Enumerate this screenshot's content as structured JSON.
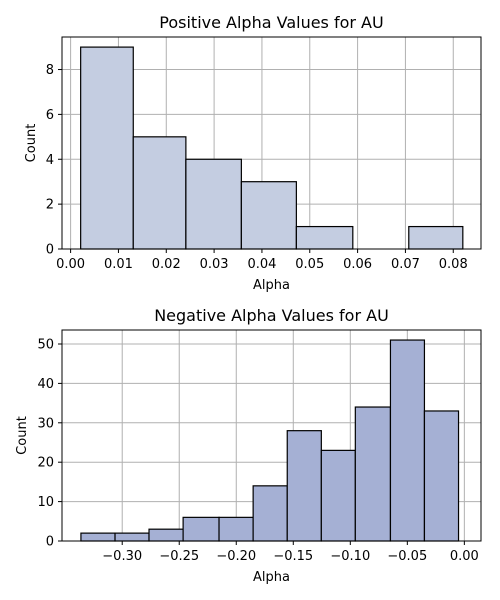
{
  "chart_data": [
    {
      "type": "bar",
      "title": "Positive Alpha Values for AU",
      "xlabel": "Alpha",
      "ylabel": "Count",
      "xlim": [
        -0.0018,
        0.0858
      ],
      "ylim": [
        0,
        9.45
      ],
      "xticks": [
        0.0,
        0.01,
        0.02,
        0.03,
        0.04,
        0.05,
        0.06,
        0.07,
        0.08
      ],
      "xtick_labels": [
        "0.00",
        "0.01",
        "0.02",
        "0.03",
        "0.04",
        "0.05",
        "0.06",
        "0.07",
        "0.08"
      ],
      "yticks": [
        0,
        2,
        4,
        6,
        8
      ],
      "ytick_labels": [
        "0",
        "2",
        "4",
        "6",
        "8"
      ],
      "grid": true,
      "color": "#c4cde1",
      "bins": [
        {
          "x0": 0.0021,
          "x1": 0.0131,
          "count": 9
        },
        {
          "x0": 0.0131,
          "x1": 0.0241,
          "count": 5
        },
        {
          "x0": 0.0241,
          "x1": 0.0357,
          "count": 4
        },
        {
          "x0": 0.0357,
          "x1": 0.0472,
          "count": 3
        },
        {
          "x0": 0.0472,
          "x1": 0.059,
          "count": 1
        },
        {
          "x0": 0.059,
          "x1": 0.0707,
          "count": 0
        },
        {
          "x0": 0.0707,
          "x1": 0.082,
          "count": 1
        }
      ]
    },
    {
      "type": "bar",
      "title": "Negative Alpha Values for AU",
      "xlabel": "Alpha",
      "ylabel": "Count",
      "xlim": [
        -0.3528,
        0.0146
      ],
      "ylim": [
        0,
        53.55
      ],
      "xticks": [
        -0.3,
        -0.25,
        -0.2,
        -0.15,
        -0.1,
        -0.05,
        0.0
      ],
      "xtick_labels": [
        "−0.30",
        "−0.25",
        "−0.20",
        "−0.15",
        "−0.10",
        "−0.05",
        "0.00"
      ],
      "yticks": [
        0,
        10,
        20,
        30,
        40,
        50
      ],
      "ytick_labels": [
        "0",
        "10",
        "20",
        "30",
        "40",
        "50"
      ],
      "grid": true,
      "color": "#a5b0d4",
      "bins": [
        {
          "x0": -0.3362,
          "x1": -0.3063,
          "count": 2
        },
        {
          "x0": -0.3063,
          "x1": -0.2765,
          "count": 2
        },
        {
          "x0": -0.2765,
          "x1": -0.2466,
          "count": 3
        },
        {
          "x0": -0.2466,
          "x1": -0.2151,
          "count": 6
        },
        {
          "x0": -0.2151,
          "x1": -0.1852,
          "count": 6
        },
        {
          "x0": -0.1852,
          "x1": -0.1553,
          "count": 14
        },
        {
          "x0": -0.1553,
          "x1": -0.1254,
          "count": 28
        },
        {
          "x0": -0.1254,
          "x1": -0.0956,
          "count": 23
        },
        {
          "x0": -0.0956,
          "x1": -0.0648,
          "count": 34
        },
        {
          "x0": -0.0648,
          "x1": -0.035,
          "count": 51
        },
        {
          "x0": -0.035,
          "x1": -0.0051,
          "count": 33
        }
      ]
    }
  ]
}
